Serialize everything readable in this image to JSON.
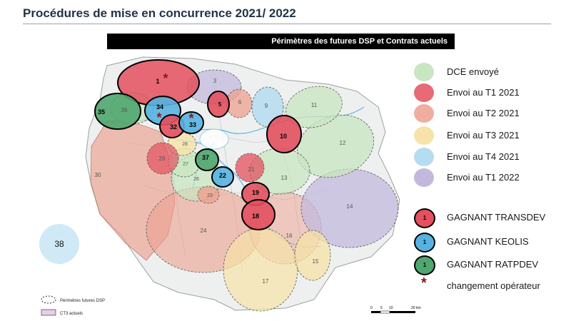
{
  "title": "Procédures de mise en concurrence 2021/ 2022",
  "banner": "Périmètres des futures DSP et Contrats actuels",
  "colors": {
    "dce": "#c8e6c0",
    "t1_2021": "#e3505e",
    "t2_2021": "#eda08f",
    "t3_2021": "#f7e3a8",
    "t4_2021": "#b5dcf0",
    "t1_2022": "#c3b9dd",
    "transdev": "#e3505e",
    "keolis": "#57b2e2",
    "ratpdev": "#4fa66e",
    "star": "#8b1a1a"
  },
  "legend": [
    {
      "label": "DCE envoyé",
      "color": "#c8e6c0"
    },
    {
      "label": "Envoi au T1 2021",
      "color": "#e3505e"
    },
    {
      "label": "Envoi au T2 2021",
      "color": "#eda08f"
    },
    {
      "label": "Envoi au T3 2021",
      "color": "#f7e3a8"
    },
    {
      "label": "Envoi au T4 2021",
      "color": "#b5dcf0"
    },
    {
      "label": "Envoi au T1 2022",
      "color": "#c3b9dd"
    }
  ],
  "winners": [
    {
      "label": "GAGNANT TRANSDEV",
      "num": "1",
      "color": "#e3505e"
    },
    {
      "label": "GAGNANT KEOLIS",
      "num": "1",
      "color": "#57b2e2"
    },
    {
      "label": "GAGNANT RATPDEV",
      "num": "1",
      "color": "#4fa66e"
    }
  ],
  "change_label": "changement opérateur",
  "star_symbol": "*",
  "outside_zone": "38",
  "map_legend": {
    "future": "Périmètres futures DSP",
    "current": "CT3 actuels"
  },
  "scale": {
    "ticks": [
      "0",
      "5",
      "10",
      "20 km"
    ]
  },
  "zones": [
    {
      "num": "1",
      "fill": "#e3505e",
      "bold": true
    },
    {
      "num": "3",
      "fill": "#c3b9dd",
      "bold": false
    },
    {
      "num": "5",
      "fill": "#e3505e",
      "bold": true
    },
    {
      "num": "6",
      "fill": "#eda08f",
      "bold": false
    },
    {
      "num": "9",
      "fill": "#b5dcf0",
      "bold": false
    },
    {
      "num": "11",
      "fill": "#c8e6c0",
      "bold": false
    },
    {
      "num": "12",
      "fill": "#c8e6c0",
      "bold": false
    },
    {
      "num": "10",
      "fill": "#e3505e",
      "bold": true
    },
    {
      "num": "35",
      "fill": "#4fa66e",
      "bold": true
    },
    {
      "num": "36",
      "fill": "#c8e6c0",
      "bold": false
    },
    {
      "num": "34",
      "fill": "#57b2e2",
      "bold": true
    },
    {
      "num": "32",
      "fill": "#e3505e",
      "bold": true
    },
    {
      "num": "33",
      "fill": "#57b2e2",
      "bold": true
    },
    {
      "num": "30",
      "fill": "#eda08f",
      "bold": false
    },
    {
      "num": "29",
      "fill": "#e3505e",
      "bold": false
    },
    {
      "num": "28",
      "fill": "#f7e3a8",
      "bold": false
    },
    {
      "num": "27",
      "fill": "#c8e6c0",
      "bold": false
    },
    {
      "num": "37",
      "fill": "#4fa66e",
      "bold": true
    },
    {
      "num": "22",
      "fill": "#57b2e2",
      "bold": true
    },
    {
      "num": "21",
      "fill": "#e3505e",
      "bold": false
    },
    {
      "num": "13",
      "fill": "#c8e6c0",
      "bold": false
    },
    {
      "num": "26",
      "fill": "#c8e6c0",
      "bold": false
    },
    {
      "num": "23",
      "fill": "#eda08f",
      "bold": false
    },
    {
      "num": "19",
      "fill": "#e3505e",
      "bold": true
    },
    {
      "num": "18",
      "fill": "#e3505e",
      "bold": true
    },
    {
      "num": "14",
      "fill": "#c3b9dd",
      "bold": false
    },
    {
      "num": "24",
      "fill": "#eda08f",
      "bold": false
    },
    {
      "num": "16",
      "fill": "#eda08f",
      "bold": false
    },
    {
      "num": "15",
      "fill": "#f7e3a8",
      "bold": false
    },
    {
      "num": "17",
      "fill": "#f7e3a8",
      "bold": false
    }
  ]
}
